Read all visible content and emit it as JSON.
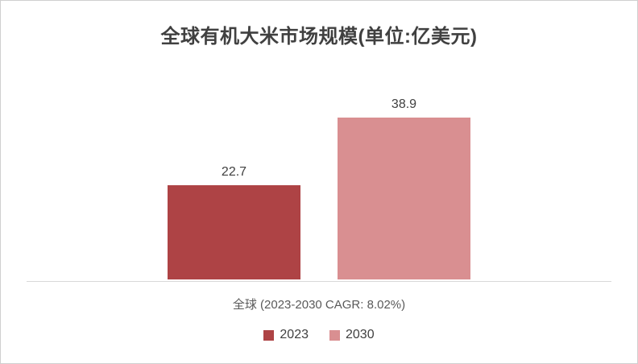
{
  "chart_data": {
    "type": "bar",
    "title": "全球有机大米市场规模(单位:亿美元)",
    "categories": [
      "全球 (2023-2030 CAGR: 8.02%)"
    ],
    "series": [
      {
        "name": "2023",
        "values": [
          22.7
        ],
        "color": "#AE4345"
      },
      {
        "name": "2030",
        "values": [
          38.9
        ],
        "color": "#D98F91"
      }
    ],
    "ylim": [
      0,
      50
    ],
    "ylabel": "",
    "xlabel": "",
    "grid": false,
    "legend_position": "bottom",
    "value_labels": true,
    "axis_line_color": "#d9d9d9",
    "title_color": "#404040",
    "label_color": "#595959"
  }
}
